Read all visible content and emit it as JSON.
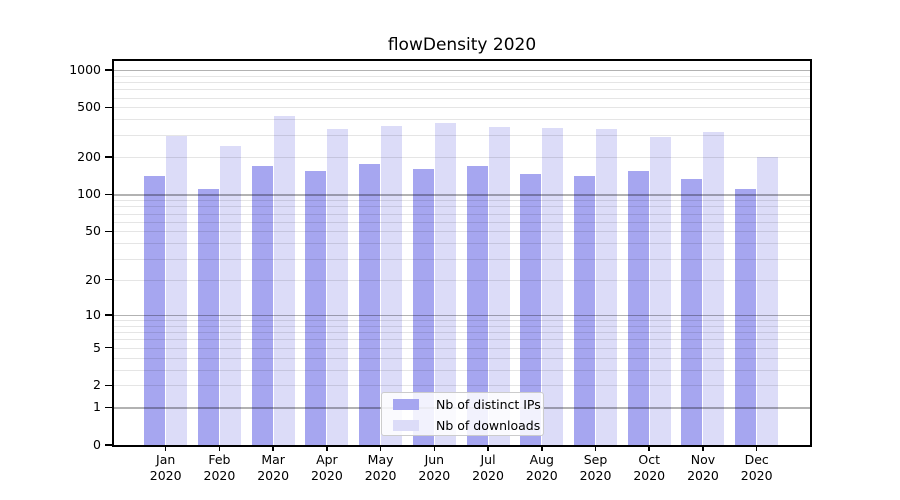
{
  "chart_data": {
    "type": "bar",
    "title": "flowDensity 2020",
    "categories": [
      "Jan",
      "Feb",
      "Mar",
      "Apr",
      "May",
      "Jun",
      "Jul",
      "Aug",
      "Sep",
      "Oct",
      "Nov",
      "Dec"
    ],
    "category_year": "2020",
    "series": [
      {
        "name": "Nb of distinct IPs",
        "color": "#a6a6f0",
        "values": [
          140,
          110,
          170,
          155,
          175,
          160,
          170,
          145,
          140,
          155,
          132,
          110
        ]
      },
      {
        "name": "Nb of downloads",
        "color": "#dcdcf8",
        "values": [
          295,
          245,
          425,
          335,
          355,
          375,
          350,
          340,
          335,
          290,
          315,
          200
        ]
      }
    ],
    "y_axis": {
      "scale": "log10(1+x)",
      "tick_labels": [
        "1000",
        "500",
        "200",
        "100",
        "50",
        "20",
        "10",
        "5",
        "2",
        "1",
        "0"
      ],
      "tick_values": [
        1000,
        500,
        200,
        100,
        50,
        20,
        10,
        5,
        2,
        1,
        0
      ],
      "range": [
        0,
        1210
      ]
    },
    "xlabel": "",
    "ylabel": "",
    "grid": {
      "major_at": [
        1,
        10,
        100,
        1000
      ],
      "minor_subs": [
        2,
        3,
        4,
        5,
        6,
        7,
        8,
        9
      ],
      "visible": true
    },
    "legend": {
      "position": "lower center inside plot"
    }
  },
  "colors": {
    "bar_distinct_ips": "#a6a6f0",
    "bar_downloads": "#dcdcf8",
    "grid_major": "#b3b3b3",
    "grid_minor": "#e6e6e6",
    "axis": "#000000",
    "background": "#ffffff",
    "legend_border": "#cccccc"
  }
}
